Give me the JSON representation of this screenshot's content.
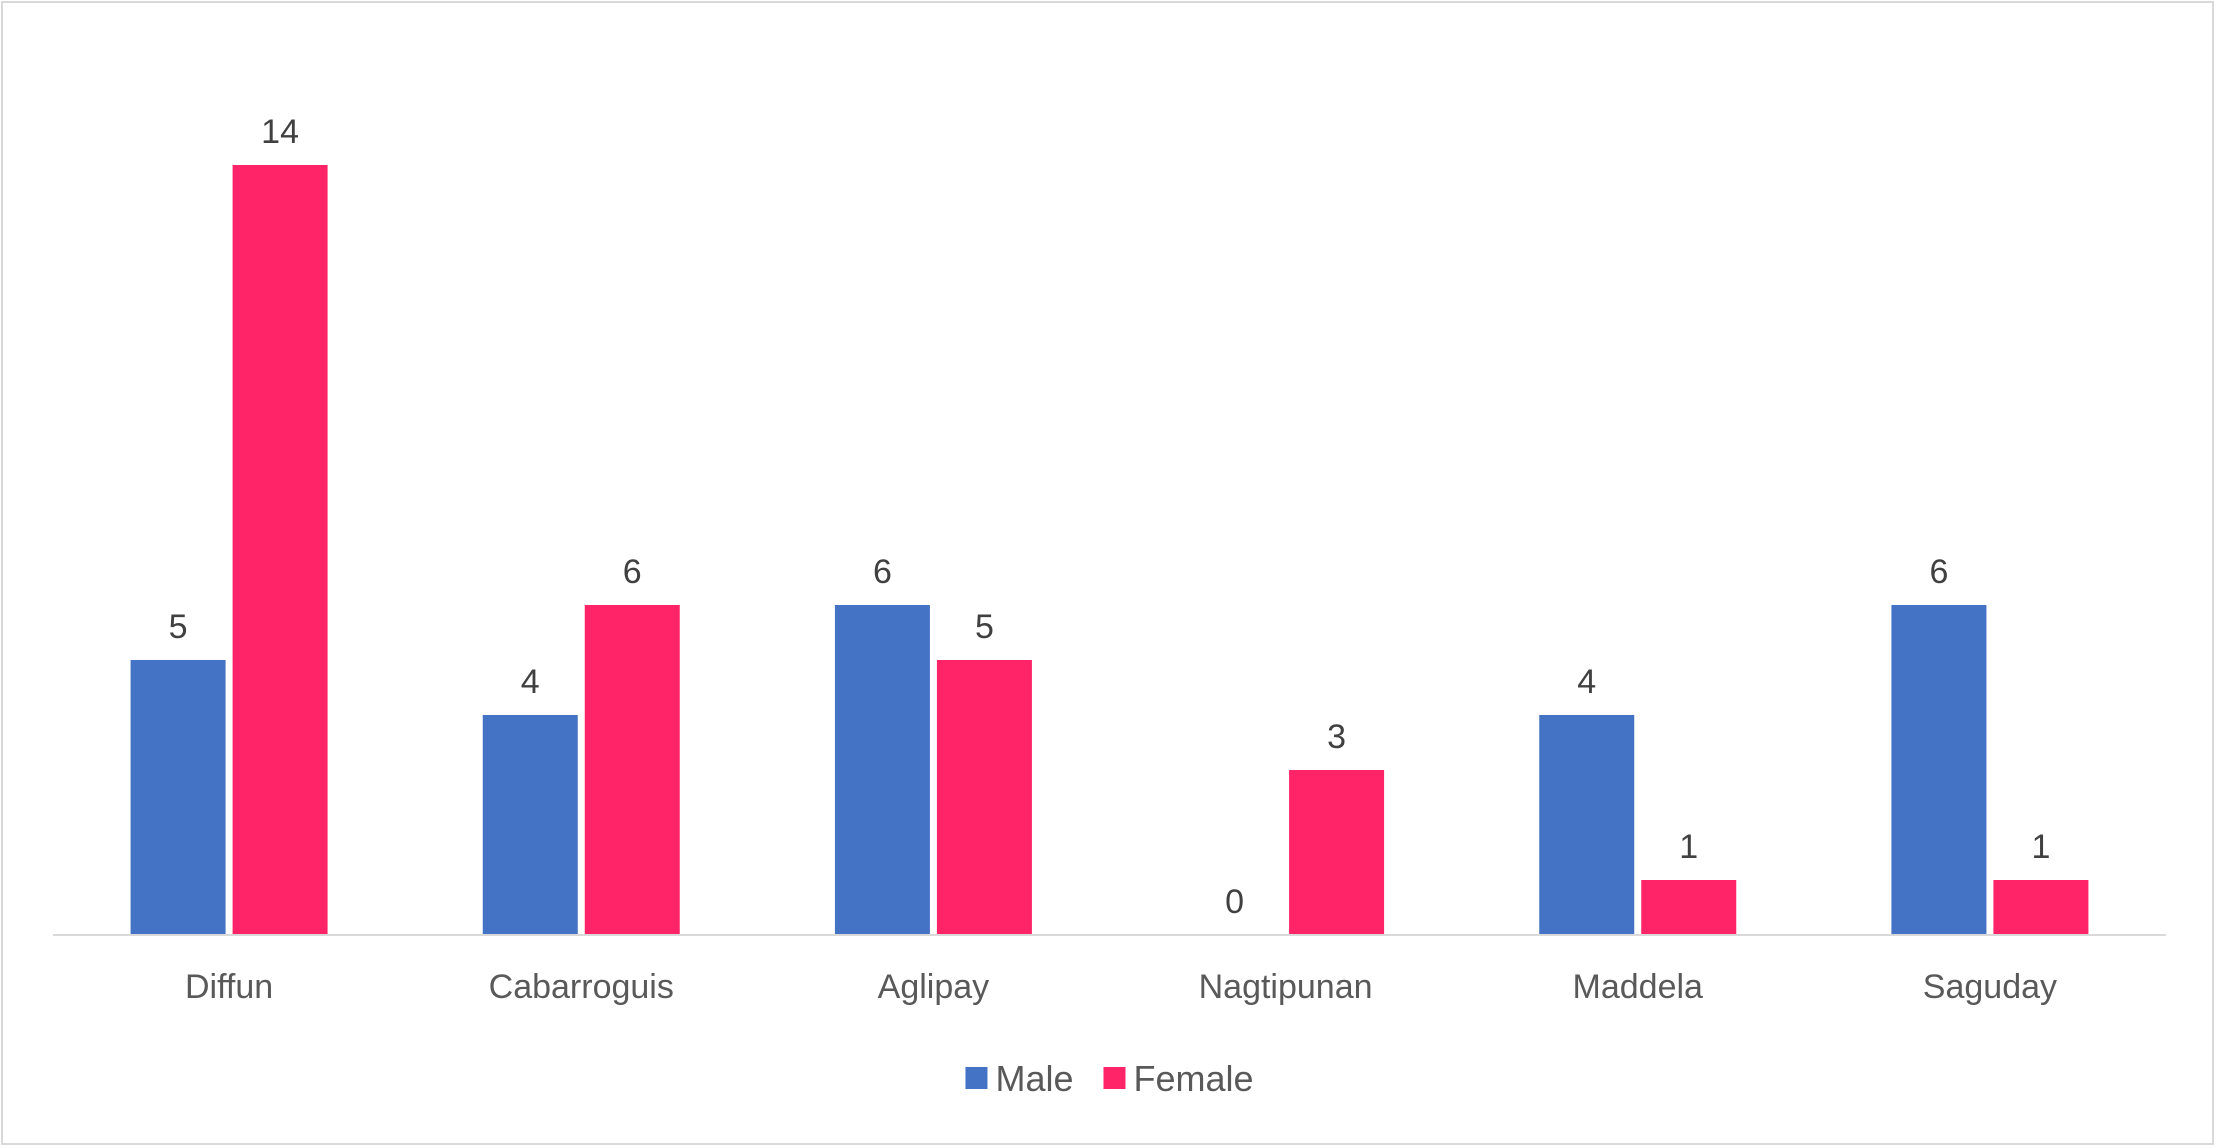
{
  "chart_data": {
    "type": "bar",
    "categories": [
      "Diffun",
      "Cabarroguis",
      "Aglipay",
      "Nagtipunan",
      "Maddela",
      "Saguday"
    ],
    "series": [
      {
        "name": "Male",
        "values": [
          5,
          4,
          6,
          0,
          4,
          6
        ],
        "color": "#4472c4"
      },
      {
        "name": "Female",
        "values": [
          14,
          6,
          5,
          3,
          1,
          1
        ],
        "color": "#ff2468"
      }
    ],
    "title": "",
    "xlabel": "",
    "ylabel": "",
    "ylim": [
      0,
      16
    ],
    "grid": false,
    "legend": "bottom-center",
    "data_labels": true
  }
}
